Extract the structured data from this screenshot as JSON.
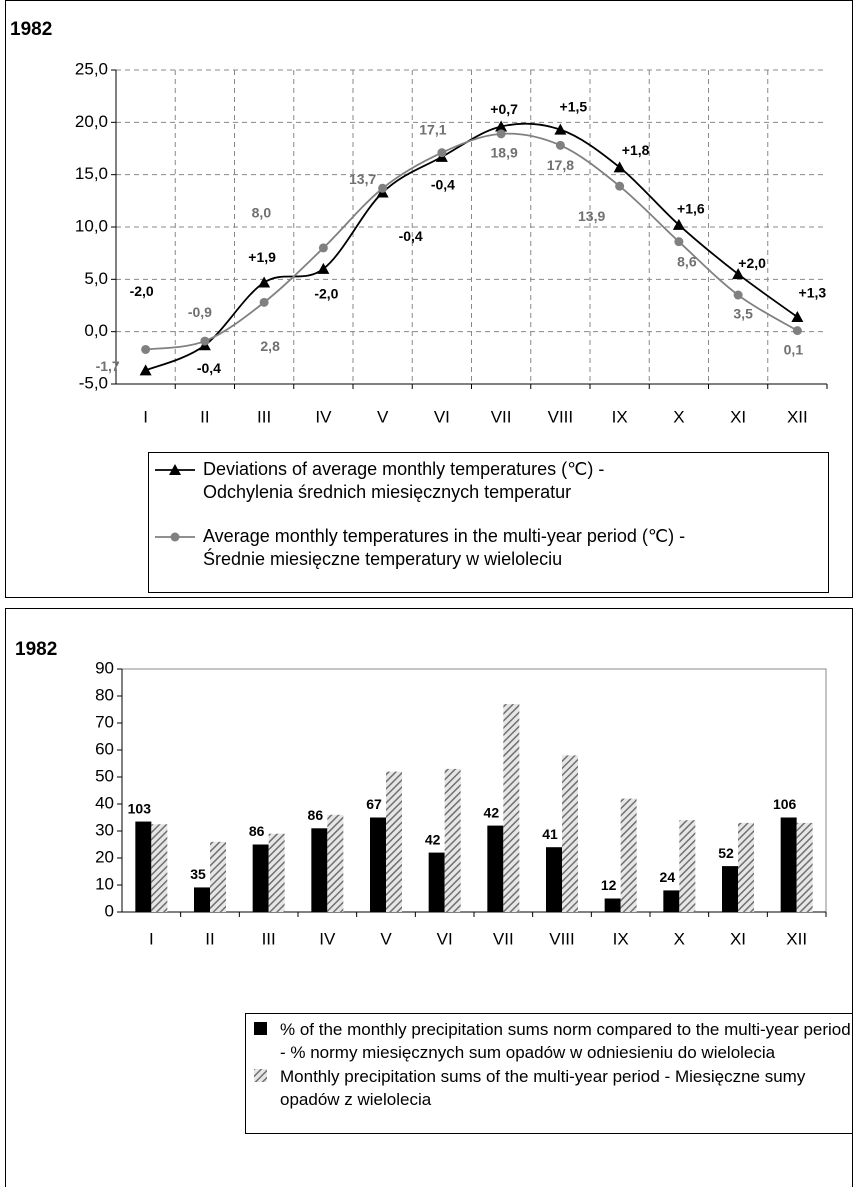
{
  "chart_data": [
    {
      "type": "line",
      "title": "1982",
      "categories": [
        "I",
        "II",
        "III",
        "IV",
        "V",
        "VI",
        "VII",
        "VIII",
        "IX",
        "X",
        "XI",
        "XII"
      ],
      "series": [
        {
          "name": "Deviations of average monthly temperatures (℃) -\nOdchylenia średnich miesięcznych temperatur",
          "color": "#000000",
          "marker": "triangle",
          "values": [
            -3.7,
            -1.3,
            4.7,
            6.0,
            13.3,
            16.7,
            19.6,
            19.3,
            15.7,
            10.2,
            5.5,
            1.4
          ],
          "deviation_labels": [
            "-2,0",
            "-0,4",
            "+1,9",
            "-2,0",
            "-0,4",
            "-0,4",
            "+0,7",
            "+1,5",
            "+1,8",
            "+1,6",
            "+2,0",
            "+1,3"
          ]
        },
        {
          "name": "Average monthly temperatures in the multi-year period (℃) -\nŚrednie miesięczne temperatury w wieloleciu",
          "color": "#808080",
          "marker": "circle",
          "values": [
            -1.7,
            -0.9,
            2.8,
            8.0,
            13.7,
            17.1,
            18.9,
            17.8,
            13.9,
            8.6,
            3.5,
            0.1
          ],
          "value_labels": [
            "-1,7",
            "-0,9",
            "2,8",
            "8,0",
            "13,7",
            "17,1",
            "18,9",
            "17,8",
            "13,9",
            "8,6",
            "3,5",
            "0,1"
          ]
        }
      ],
      "ylim": [
        -5,
        25
      ],
      "yticks": [
        {
          "value": -5,
          "label": "-5,0"
        },
        {
          "value": 0,
          "label": "0,0"
        },
        {
          "value": 5,
          "label": "5,0"
        },
        {
          "value": 10,
          "label": "10,0"
        },
        {
          "value": 15,
          "label": "15,0"
        },
        {
          "value": 20,
          "label": "20,0"
        },
        {
          "value": 25,
          "label": "25,0"
        }
      ],
      "grid": true,
      "smooth": true
    },
    {
      "type": "bar",
      "title": "1982",
      "categories": [
        "I",
        "II",
        "III",
        "IV",
        "V",
        "VI",
        "VII",
        "VIII",
        "IX",
        "X",
        "XI",
        "XII"
      ],
      "series": [
        {
          "name": "% of the monthly precipitation sums norm compared to the multi-year period\n- % normy miesięcznych sum opadów w odniesieniu do wielolecia",
          "color": "#000000",
          "values": [
            33.5,
            9.1,
            25,
            31,
            35,
            22,
            32,
            24,
            5,
            8,
            17,
            35
          ],
          "percent_labels": [
            103,
            35,
            86,
            86,
            67,
            42,
            42,
            41,
            12,
            24,
            52,
            106
          ]
        },
        {
          "name": "Monthly precipitation sums of the multi-year period - Miesięczne sumy\nopadów z wielolecia",
          "color": "#808080",
          "pattern": "hatch",
          "values": [
            32.5,
            26,
            29,
            36,
            52,
            53,
            77,
            58,
            42,
            34,
            33,
            33
          ]
        }
      ],
      "ylim": [
        0,
        90
      ],
      "yticks": [
        0,
        10,
        20,
        30,
        40,
        50,
        60,
        70,
        80,
        90
      ],
      "grid": false
    }
  ]
}
